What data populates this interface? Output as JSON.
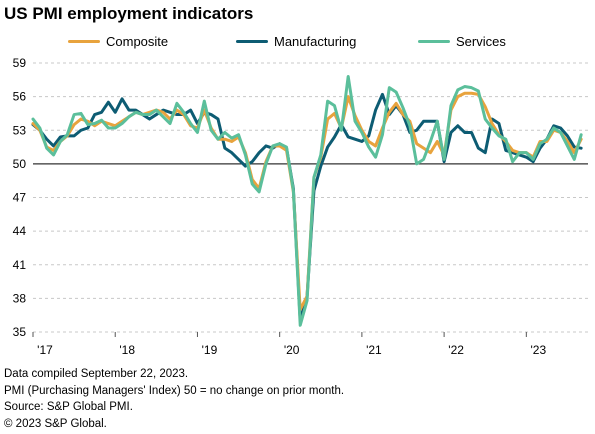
{
  "chart_data": {
    "type": "line",
    "title": "US PMI employment indicators",
    "xlabel": "",
    "ylabel": "",
    "ylim": [
      35,
      59
    ],
    "yticks": [
      35,
      38,
      41,
      44,
      47,
      50,
      53,
      56,
      59
    ],
    "xlim": [
      2017.0,
      2023.75
    ],
    "xticks": [
      {
        "value": 2017.0,
        "label": "'17"
      },
      {
        "value": 2018.0,
        "label": "'18"
      },
      {
        "value": 2019.0,
        "label": "'19"
      },
      {
        "value": 2020.0,
        "label": "'20"
      },
      {
        "value": 2021.0,
        "label": "'21"
      },
      {
        "value": 2022.0,
        "label": "'22"
      },
      {
        "value": 2023.0,
        "label": "'23"
      }
    ],
    "reference_line": 50,
    "grid": "horizontal dashed",
    "legend": "top",
    "x": [
      "2017-01",
      "2017-02",
      "2017-03",
      "2017-04",
      "2017-05",
      "2017-06",
      "2017-07",
      "2017-08",
      "2017-09",
      "2017-10",
      "2017-11",
      "2017-12",
      "2018-01",
      "2018-02",
      "2018-03",
      "2018-04",
      "2018-05",
      "2018-06",
      "2018-07",
      "2018-08",
      "2018-09",
      "2018-10",
      "2018-11",
      "2018-12",
      "2019-01",
      "2019-02",
      "2019-03",
      "2019-04",
      "2019-05",
      "2019-06",
      "2019-07",
      "2019-08",
      "2019-09",
      "2019-10",
      "2019-11",
      "2019-12",
      "2020-01",
      "2020-02",
      "2020-03",
      "2020-04",
      "2020-05",
      "2020-06",
      "2020-07",
      "2020-08",
      "2020-09",
      "2020-10",
      "2020-11",
      "2020-12",
      "2021-01",
      "2021-02",
      "2021-03",
      "2021-04",
      "2021-05",
      "2021-06",
      "2021-07",
      "2021-08",
      "2021-09",
      "2021-10",
      "2021-11",
      "2021-12",
      "2022-01",
      "2022-02",
      "2022-03",
      "2022-04",
      "2022-05",
      "2022-06",
      "2022-07",
      "2022-08",
      "2022-09",
      "2022-10",
      "2022-11",
      "2022-12",
      "2023-01",
      "2023-02",
      "2023-03",
      "2023-04",
      "2023-05",
      "2023-06",
      "2023-07",
      "2023-08",
      "2023-09"
    ],
    "series": [
      {
        "name": "Composite",
        "color": "#E8A33D",
        "values": [
          53.6,
          53.0,
          51.5,
          51.2,
          52.0,
          52.5,
          53.5,
          54.0,
          53.8,
          53.4,
          53.8,
          53.6,
          53.4,
          53.8,
          54.2,
          54.6,
          54.4,
          54.6,
          54.8,
          54.6,
          54.0,
          54.8,
          54.4,
          53.4,
          53.2,
          54.8,
          53.2,
          52.2,
          52.2,
          52.0,
          52.4,
          51.0,
          48.6,
          47.8,
          50.2,
          51.6,
          51.6,
          51.2,
          47.5,
          37.0,
          38.2,
          48.8,
          50.6,
          54.0,
          54.5,
          53.2,
          56.0,
          54.3,
          53.0,
          52.0,
          51.6,
          53.2,
          54.6,
          55.4,
          54.4,
          53.8,
          51.8,
          51.4,
          51.0,
          52.0,
          50.8,
          54.8,
          56.0,
          56.3,
          56.3,
          56.2,
          55.1,
          53.6,
          52.6,
          52.0,
          51.2,
          51.0,
          51.0,
          50.6,
          52.0,
          52.0,
          53.0,
          52.8,
          52.0,
          51.0,
          52.2
        ],
        "label": "Composite"
      },
      {
        "name": "Manufacturing",
        "color": "#0D5C73",
        "values": [
          53.5,
          53.0,
          52.2,
          51.6,
          52.4,
          52.5,
          52.5,
          53.0,
          53.2,
          54.4,
          54.6,
          55.5,
          54.6,
          55.8,
          54.8,
          54.8,
          54.4,
          54.0,
          54.4,
          54.8,
          54.6,
          54.4,
          54.4,
          54.8,
          53.6,
          54.6,
          54.4,
          54.0,
          51.4,
          51.0,
          50.4,
          49.8,
          50.2,
          51.0,
          51.6,
          51.4,
          51.8,
          51.4,
          47.8,
          36.0,
          38.2,
          47.6,
          49.8,
          51.5,
          52.4,
          53.5,
          52.4,
          52.2,
          52.0,
          52.5,
          54.8,
          56.2,
          54.4,
          55.2,
          54.4,
          52.8,
          53.0,
          53.8,
          53.8,
          53.8,
          50.2,
          52.8,
          53.4,
          52.8,
          52.8,
          51.4,
          51.0,
          54.0,
          53.6,
          51.2,
          51.0,
          50.8,
          50.6,
          50.2,
          51.4,
          52.2,
          53.4,
          53.2,
          52.5,
          51.5,
          51.4
        ],
        "label": "Manufacturing"
      },
      {
        "name": "Services",
        "color": "#5BBF9B",
        "values": [
          54.0,
          53.2,
          51.4,
          50.8,
          52.0,
          52.6,
          54.4,
          54.5,
          53.5,
          53.6,
          53.9,
          53.2,
          53.2,
          53.6,
          54.2,
          54.6,
          54.4,
          54.4,
          54.8,
          54.2,
          53.6,
          55.4,
          54.6,
          53.6,
          52.8,
          55.6,
          53.0,
          52.2,
          52.8,
          52.3,
          52.6,
          50.8,
          48.2,
          47.5,
          50.0,
          51.6,
          51.8,
          51.5,
          47.6,
          35.6,
          37.8,
          48.8,
          50.8,
          55.6,
          55.2,
          53.0,
          57.8,
          53.8,
          52.8,
          51.5,
          50.6,
          52.6,
          56.8,
          56.4,
          55.0,
          53.4,
          50.0,
          50.4,
          52.0,
          53.8,
          50.4,
          55.2,
          56.6,
          56.9,
          56.8,
          56.5,
          54.0,
          53.2,
          52.5,
          52.2,
          50.2,
          51.0,
          51.0,
          50.4,
          51.8,
          52.2,
          53.2,
          52.8,
          51.6,
          50.4,
          52.6
        ],
        "label": "Services"
      }
    ]
  },
  "footer": {
    "line1": "Data compiled September 22, 2023.",
    "line2": "PMI (Purchasing Managers' Index) 50 =  no change on prior month.",
    "line3": "Source: S&P Global PMI.",
    "line4": "© 2023 S&P Global."
  }
}
